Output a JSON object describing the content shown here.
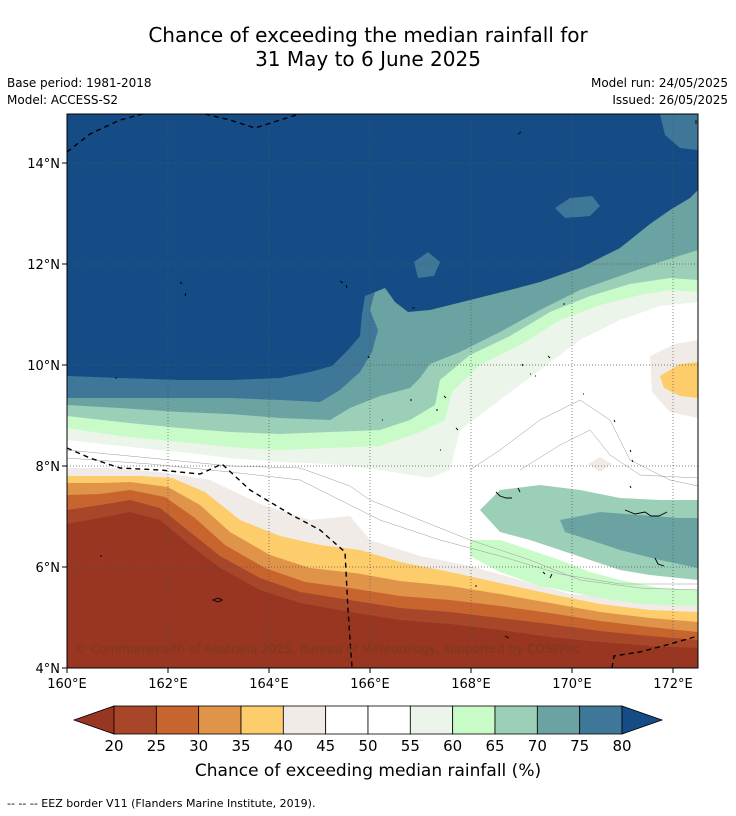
{
  "title_line1": "Chance of exceeding the median rainfall for",
  "title_line2": "31 May to 6 June 2025",
  "meta": {
    "base_period": "Base period: 1981-2018",
    "model": "Model: ACCESS-S2",
    "model_run": "Model run: 24/05/2025",
    "issued": "Issued: 26/05/2025"
  },
  "map": {
    "lon_labels": [
      "160°E",
      "162°E",
      "164°E",
      "166°E",
      "168°E",
      "170°E",
      "172°E"
    ],
    "lat_labels": [
      "14°N",
      "12°N",
      "10°N",
      "8°N",
      "6°N",
      "4°N"
    ],
    "copyright": "© Commonwealth of Australia 2025, Bureau of Meteorology, supported by COSPPac"
  },
  "colorbar": {
    "ticks": [
      "20",
      "25",
      "30",
      "35",
      "40",
      "45",
      "50",
      "55",
      "60",
      "65",
      "70",
      "75",
      "80"
    ],
    "colors": [
      "#a8462a",
      "#c8652f",
      "#e0944a",
      "#fdcc6b",
      "#f0ebe6",
      "#ffffff",
      "#ffffff",
      "#ebf5ea",
      "#c8fbc8",
      "#9ccfb8",
      "#6ba3a3",
      "#3f7799"
    ],
    "low_color": "#983621",
    "high_color": "#164c86",
    "label": "Chance of exceeding median rainfall (%)"
  },
  "footer": "--  --  -- EEZ border V11 (Flanders Marine Institute, 2019)."
}
